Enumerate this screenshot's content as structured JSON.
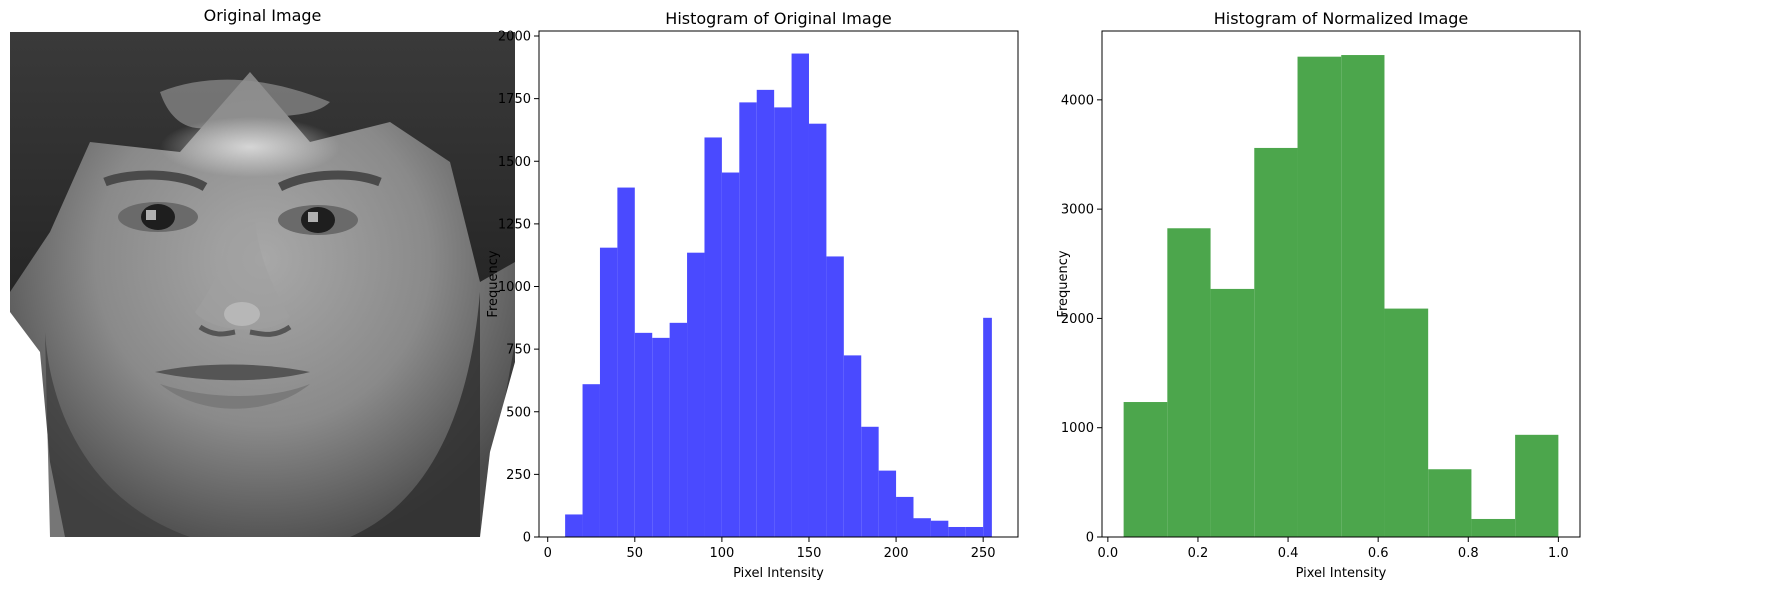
{
  "panels": {
    "image_title": "Original Image",
    "image_subject": "grayscale-face-photo"
  },
  "chart_data": [
    {
      "type": "bar",
      "title": "Histogram of Original Image",
      "xlabel": "Pixel Intensity",
      "ylabel": "Frequency",
      "color": "#4a4aff",
      "bin_edges": [
        10,
        20,
        30,
        40,
        50,
        60,
        70,
        80,
        90,
        100,
        110,
        120,
        130,
        140,
        150,
        160,
        170,
        180,
        190,
        200,
        210,
        220,
        230,
        240,
        250,
        255
      ],
      "values": [
        90,
        610,
        1155,
        1395,
        815,
        795,
        855,
        1135,
        1595,
        1455,
        1735,
        1785,
        1715,
        1930,
        1650,
        1120,
        725,
        440,
        265,
        160,
        75,
        65,
        40,
        40,
        875
      ],
      "xlim": [
        -5,
        270
      ],
      "ylim": [
        0,
        2020
      ],
      "xticks": [
        0,
        50,
        100,
        150,
        200,
        250
      ],
      "xtick_labels": [
        "0",
        "50",
        "100",
        "150",
        "200",
        "250"
      ],
      "yticks": [
        0,
        250,
        500,
        750,
        1000,
        1250,
        1500,
        1750,
        2000
      ],
      "ytick_labels": [
        "0",
        "250",
        "500",
        "750",
        "1000",
        "1250",
        "1500",
        "1750",
        "2000"
      ]
    },
    {
      "type": "bar",
      "title": "Histogram of Normalized Image",
      "xlabel": "Pixel Intensity",
      "ylabel": "Frequency",
      "color": "#4ca64c",
      "bin_edges": [
        0.035,
        0.132,
        0.228,
        0.325,
        0.421,
        0.518,
        0.614,
        0.711,
        0.807,
        0.904,
        1.0
      ],
      "values": [
        1235,
        2825,
        2270,
        3560,
        4395,
        4410,
        2090,
        620,
        165,
        935
      ],
      "xlim": [
        -0.013,
        1.048
      ],
      "ylim": [
        0,
        4630
      ],
      "xticks": [
        0.0,
        0.2,
        0.4,
        0.6,
        0.8,
        1.0
      ],
      "xtick_labels": [
        "0.0",
        "0.2",
        "0.4",
        "0.6",
        "0.8",
        "1.0"
      ],
      "yticks": [
        0,
        1000,
        2000,
        3000,
        4000
      ],
      "ytick_labels": [
        "0",
        "1000",
        "2000",
        "3000",
        "4000"
      ]
    }
  ]
}
